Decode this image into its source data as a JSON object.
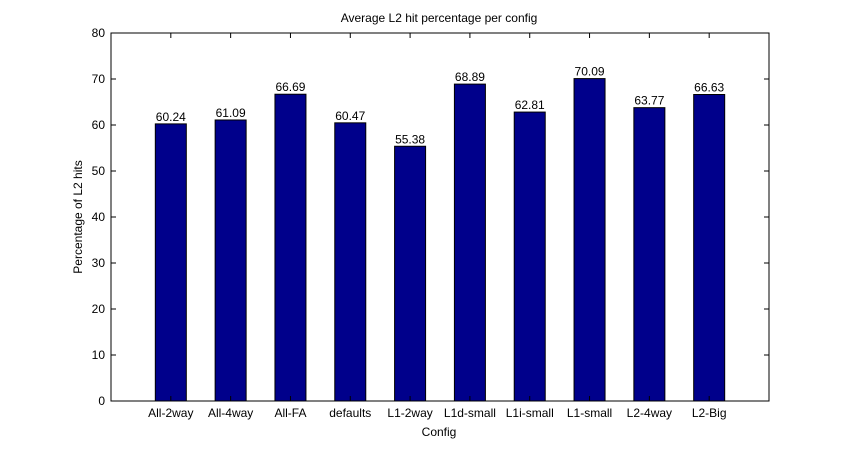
{
  "chart_data": {
    "type": "bar",
    "title": "Average L2 hit percentage per config",
    "xlabel": "Config",
    "ylabel": "Percentage of L2 hits",
    "categories": [
      "All-2way",
      "All-4way",
      "All-FA",
      "defaults",
      "L1-2way",
      "L1d-small",
      "L1i-small",
      "L1-small",
      "L2-4way",
      "L2-Big"
    ],
    "values": [
      60.24,
      61.09,
      66.69,
      60.47,
      55.38,
      68.89,
      62.81,
      70.09,
      63.77,
      66.63
    ],
    "data_labels": [
      "60.24",
      "61.09",
      "66.69",
      "60.47",
      "55.38",
      "68.89",
      "62.81",
      "70.09",
      "63.77",
      "66.63"
    ],
    "ylim": [
      0,
      80
    ],
    "yticks": [
      0,
      10,
      20,
      30,
      40,
      50,
      60,
      70,
      80
    ],
    "grid": false,
    "bar_color": "#00008b"
  }
}
